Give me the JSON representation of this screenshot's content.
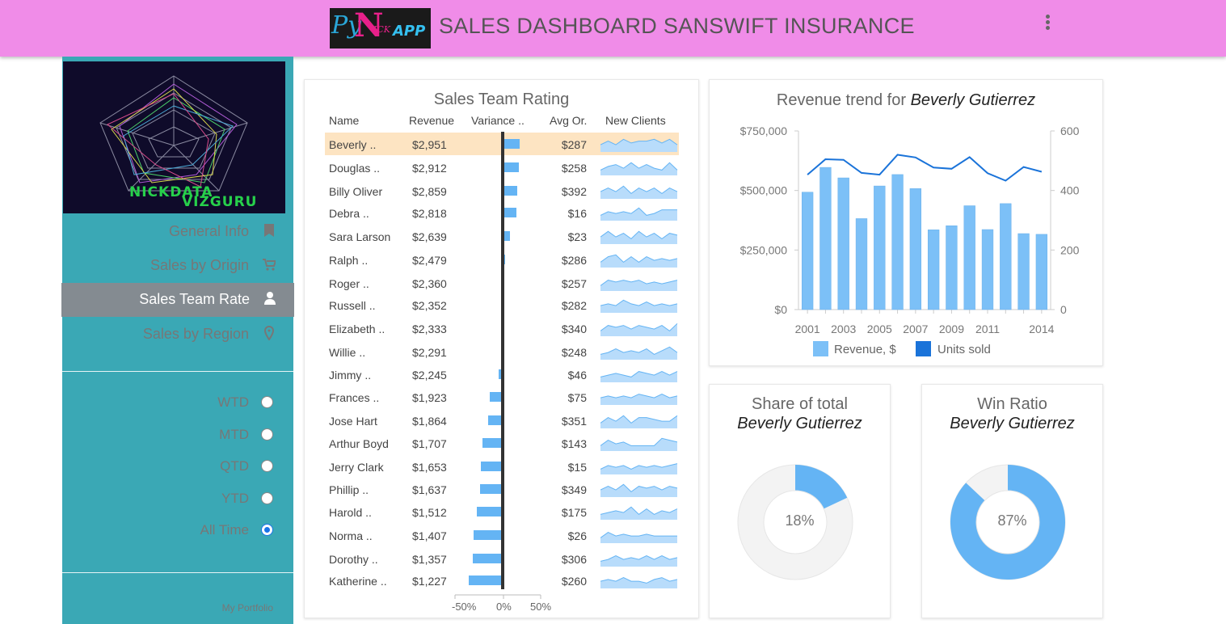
{
  "header": {
    "title": "SALES DASHBOARD SANSWIFT INSURANCE",
    "logo_py": "Py",
    "logo_n": "N",
    "logo_ick": "ICK",
    "logo_app": "APP"
  },
  "sidebar": {
    "logo_line1": "NICKDATA",
    "logo_line2": "VIZGURU",
    "nav": [
      {
        "label": "General Info",
        "icon": "bookmark-icon"
      },
      {
        "label": "Sales by Origin",
        "icon": "cart-icon"
      },
      {
        "label": "Sales Team Rate",
        "icon": "user-icon",
        "active": true
      },
      {
        "label": "Sales by Region",
        "icon": "map-pin-icon"
      }
    ],
    "periods": [
      {
        "label": "WTD",
        "checked": false
      },
      {
        "label": "MTD",
        "checked": false
      },
      {
        "label": "QTD",
        "checked": false
      },
      {
        "label": "YTD",
        "checked": false
      },
      {
        "label": "All Time",
        "checked": true
      }
    ],
    "portfolio": "My Portfolio"
  },
  "team": {
    "title": "Sales Team Rating",
    "columns": {
      "name": "Name",
      "revenue": "Revenue",
      "variance": "Variance ..",
      "avg": "Avg Or.",
      "clients": "New Clients"
    },
    "variance_axis": [
      "-50%",
      "0%",
      "50%"
    ],
    "rows": [
      {
        "name": "Beverly ..",
        "revenue": "$2,951",
        "avg": "$287",
        "variance": 22,
        "spark": [
          3,
          5,
          3,
          6,
          4,
          5,
          5,
          6,
          4,
          6,
          3
        ]
      },
      {
        "name": "Douglas ..",
        "revenue": "$2,912",
        "avg": "$258",
        "variance": 21,
        "spark": [
          2,
          4,
          5,
          3,
          6,
          3,
          5,
          3,
          2,
          6,
          2
        ]
      },
      {
        "name": "Billy Oliver",
        "revenue": "$2,859",
        "avg": "$392",
        "variance": 18,
        "spark": [
          3,
          5,
          3,
          6,
          2,
          5,
          3,
          5,
          2,
          5,
          3
        ]
      },
      {
        "name": "Debra ..",
        "revenue": "$2,818",
        "avg": "$16",
        "variance": 17,
        "spark": [
          2,
          4,
          3,
          4,
          3,
          6,
          2,
          3,
          5,
          5,
          5
        ]
      },
      {
        "name": "Sara Larson",
        "revenue": "$2,639",
        "avg": "$23",
        "variance": 9,
        "spark": [
          3,
          6,
          3,
          5,
          2,
          6,
          3,
          5,
          2,
          5,
          4
        ]
      },
      {
        "name": "Ralph ..",
        "revenue": "$2,479",
        "avg": "$286",
        "variance": 2,
        "spark": [
          2,
          5,
          6,
          2,
          5,
          2,
          5,
          3,
          4,
          3,
          4
        ]
      },
      {
        "name": "Roger ..",
        "revenue": "$2,360",
        "avg": "$257",
        "variance": 0,
        "spark": [
          2,
          5,
          4,
          5,
          4,
          5,
          3,
          4,
          3,
          4,
          5
        ]
      },
      {
        "name": "Russell ..",
        "revenue": "$2,352",
        "avg": "$282",
        "variance": 0,
        "spark": [
          3,
          4,
          3,
          6,
          4,
          3,
          5,
          3,
          4,
          3,
          4
        ]
      },
      {
        "name": "Elizabeth ..",
        "revenue": "$2,333",
        "avg": "$340",
        "variance": 0,
        "spark": [
          2,
          5,
          4,
          5,
          3,
          5,
          4,
          3,
          5,
          2,
          6
        ]
      },
      {
        "name": "Willie ..",
        "revenue": "$2,291",
        "avg": "$248",
        "variance": -1,
        "spark": [
          2,
          3,
          5,
          3,
          4,
          3,
          5,
          2,
          4,
          6,
          3
        ]
      },
      {
        "name": "Jimmy ..",
        "revenue": "$2,245",
        "avg": "$46",
        "variance": -4,
        "spark": [
          2,
          3,
          4,
          3,
          2,
          5,
          4,
          3,
          5,
          3,
          5
        ]
      },
      {
        "name": "Frances ..",
        "revenue": "$1,923",
        "avg": "$75",
        "variance": -16,
        "spark": [
          3,
          4,
          3,
          4,
          3,
          5,
          4,
          3,
          5,
          3,
          4
        ]
      },
      {
        "name": "Jose Hart",
        "revenue": "$1,864",
        "avg": "$351",
        "variance": -19,
        "spark": [
          2,
          5,
          3,
          6,
          2,
          5,
          5,
          4,
          3,
          3,
          6
        ]
      },
      {
        "name": "Arthur Boyd",
        "revenue": "$1,707",
        "avg": "$143",
        "variance": -26,
        "spark": [
          2,
          5,
          3,
          4,
          2,
          2,
          2,
          2,
          6,
          5,
          4
        ]
      },
      {
        "name": "Jerry Clark",
        "revenue": "$1,653",
        "avg": "$15",
        "variance": -28,
        "spark": [
          2,
          4,
          3,
          4,
          2,
          4,
          3,
          4,
          3,
          4,
          5
        ]
      },
      {
        "name": "Phillip ..",
        "revenue": "$1,637",
        "avg": "$349",
        "variance": -29,
        "spark": [
          3,
          5,
          3,
          6,
          2,
          5,
          4,
          5,
          3,
          5,
          4
        ]
      },
      {
        "name": "Harold ..",
        "revenue": "$1,512",
        "avg": "$175",
        "variance": -34,
        "spark": [
          2,
          3,
          4,
          3,
          6,
          2,
          5,
          2,
          4,
          3,
          5
        ]
      },
      {
        "name": "Norma ..",
        "revenue": "$1,407",
        "avg": "$26",
        "variance": -38,
        "spark": [
          2,
          5,
          3,
          4,
          3,
          3,
          4,
          3,
          3,
          3,
          3
        ]
      },
      {
        "name": "Dorothy ..",
        "revenue": "$1,357",
        "avg": "$306",
        "variance": -39,
        "spark": [
          2,
          3,
          5,
          3,
          4,
          3,
          5,
          3,
          5,
          3,
          4
        ]
      },
      {
        "name": "Katherine ..",
        "revenue": "$1,227",
        "avg": "$260",
        "variance": -45,
        "spark": [
          3,
          4,
          3,
          5,
          3,
          3,
          2,
          4,
          5,
          3,
          4
        ]
      }
    ]
  },
  "trend": {
    "title_prefix": "Revenue trend for ",
    "person": "Beverly Gutierrez",
    "legend": {
      "revenue": "Revenue, $",
      "units": "Units sold"
    },
    "colors": {
      "revenue": "#7cc0f7",
      "units": "#1a73d9"
    }
  },
  "share": {
    "title": "Share of total",
    "person": "Beverly Gutierrez",
    "value_label": "18%",
    "value": 0.18
  },
  "win": {
    "title": "Win Ratio",
    "person": "Beverly Gutierrez",
    "value_label": "87%",
    "value": 0.87
  },
  "chart_data": {
    "type": "bar",
    "x": [
      2001,
      2002,
      2003,
      2004,
      2005,
      2006,
      2007,
      2008,
      2009,
      2010,
      2011,
      2012,
      2013,
      2014
    ],
    "x_tick_labels": [
      "2001",
      "2003",
      "2005",
      "2007",
      "2009",
      "2011",
      "2014"
    ],
    "x_tick_values": [
      2001,
      2003,
      2005,
      2007,
      2009,
      2011,
      2014
    ],
    "y_tick_labels": [
      "$0",
      "$250,000",
      "$500,000",
      "$750,000"
    ],
    "y_tick_values": [
      0,
      250000,
      500000,
      750000
    ],
    "y2_tick_labels": [
      "0",
      "200",
      "400",
      "600"
    ],
    "y2_tick_values": [
      0,
      200,
      400,
      600
    ],
    "ylim": [
      0,
      750000
    ],
    "y2lim": [
      0,
      600
    ],
    "series": [
      {
        "name": "Revenue, $",
        "type": "bar",
        "values": [
          493000,
          597000,
          553000,
          382000,
          519000,
          567000,
          508000,
          335000,
          352000,
          436000,
          336000,
          445000,
          319000,
          316000
        ]
      },
      {
        "name": "Units sold",
        "type": "line",
        "values": [
          453,
          505,
          503,
          459,
          453,
          520,
          511,
          477,
          473,
          512,
          458,
          433,
          479,
          463
        ]
      }
    ],
    "legend": "bottom"
  }
}
